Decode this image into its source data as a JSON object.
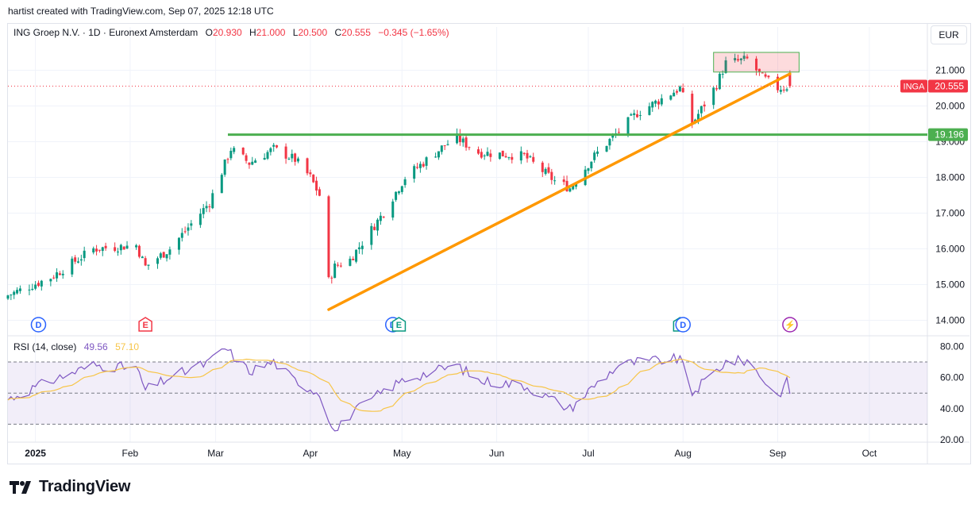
{
  "header": {
    "credit": "hartist created with TradingView.com, Sep 07, 2025 12:18 UTC"
  },
  "legend": {
    "symbol": "ING Groep N.V. · 1D · Euronext Amsterdam",
    "open_label": "O",
    "open": "20.930",
    "high_label": "H",
    "high": "21.000",
    "low_label": "L",
    "low": "20.500",
    "close_label": "C",
    "close": "20.555",
    "change": "−0.345 (−1.65%)"
  },
  "currency": "EUR",
  "brand": "TradingView",
  "price_tag": {
    "ticker": "INGA",
    "value": "20.555"
  },
  "level_tag": "19.196",
  "rsi": {
    "label": "RSI (14, close)",
    "value": "49.56",
    "ma": "57.10"
  },
  "colors": {
    "up": "#089981",
    "down": "#f23645",
    "support": "#4caf50",
    "trend": "#ff9800",
    "rsi": "#7e57c2",
    "rsi_ma": "#f7c548",
    "event_blue": "#2962ff",
    "event_red": "#f23645",
    "event_green": "#089981",
    "event_purple": "#9c27b0"
  },
  "chart_data": {
    "type": "candlestick",
    "title": "ING Groep N.V. · 1D · Euronext Amsterdam",
    "xlabel": "",
    "ylabel": "EUR",
    "x_tick_labels": [
      "2025",
      "Feb",
      "Mar",
      "Apr",
      "May",
      "Jun",
      "Jul",
      "Aug",
      "Sep",
      "Oct"
    ],
    "y_tick_labels": [
      "14.000",
      "15.000",
      "16.000",
      "17.000",
      "18.000",
      "19.000",
      "20.000",
      "21.000"
    ],
    "ylim": [
      13.8,
      22.0
    ],
    "anchors": [
      [
        "2024-12-23",
        14.7
      ],
      [
        "2025-01-06",
        15.2
      ],
      [
        "2025-01-20",
        16.0
      ],
      [
        "2025-02-03",
        16.1
      ],
      [
        "2025-02-06",
        15.5
      ],
      [
        "2025-02-14",
        16.0
      ],
      [
        "2025-02-27",
        17.3
      ],
      [
        "2025-03-06",
        18.8
      ],
      [
        "2025-03-12",
        18.4
      ],
      [
        "2025-03-20",
        18.8
      ],
      [
        "2025-03-27",
        18.5
      ],
      [
        "2025-04-01",
        18.0
      ],
      [
        "2025-04-04",
        17.5
      ],
      [
        "2025-04-07",
        15.1
      ],
      [
        "2025-04-09",
        15.5
      ],
      [
        "2025-04-14",
        15.7
      ],
      [
        "2025-04-24",
        16.9
      ],
      [
        "2025-05-02",
        18.0
      ],
      [
        "2025-05-15",
        18.9
      ],
      [
        "2025-05-19",
        19.1
      ],
      [
        "2025-05-26",
        18.7
      ],
      [
        "2025-06-10",
        18.6
      ],
      [
        "2025-06-20",
        17.9
      ],
      [
        "2025-06-25",
        17.7
      ],
      [
        "2025-07-03",
        18.6
      ],
      [
        "2025-07-11",
        19.3
      ],
      [
        "2025-07-17",
        19.8
      ],
      [
        "2025-07-31",
        20.5
      ],
      [
        "2025-08-04",
        19.5
      ],
      [
        "2025-08-12",
        20.6
      ],
      [
        "2025-08-15",
        21.2
      ],
      [
        "2025-08-22",
        21.3
      ],
      [
        "2025-08-27",
        20.8
      ],
      [
        "2025-09-01",
        20.5
      ],
      [
        "2025-09-05",
        20.555
      ]
    ],
    "last": {
      "open": 20.93,
      "high": 21.0,
      "low": 20.5,
      "close": 20.555
    },
    "support_level": 19.196,
    "trendline": [
      [
        "2025-04-07",
        14.3
      ],
      [
        "2025-09-05",
        20.9
      ]
    ],
    "rectangle": {
      "from": "2025-08-11",
      "to": "2025-09-08",
      "top": 21.5,
      "bottom": 20.95
    },
    "events": [
      {
        "date": "2025-01-02",
        "letter": "D",
        "kind": "blue"
      },
      {
        "date": "2025-02-06",
        "letter": "E",
        "kind": "red"
      },
      {
        "date": "2025-04-28",
        "letter": "D",
        "kind": "blue"
      },
      {
        "date": "2025-04-30",
        "letter": "E",
        "kind": "green"
      },
      {
        "date": "2025-07-31",
        "letter": "E",
        "kind": "green"
      },
      {
        "date": "2025-08-01",
        "letter": "D",
        "kind": "blue"
      },
      {
        "date": "2025-09-05",
        "letter": "⚡",
        "kind": "purple"
      }
    ],
    "rsi_panel": {
      "y_tick_labels": [
        "20.00",
        "40.00",
        "60.00",
        "80.00"
      ],
      "ylim": [
        18,
        84
      ],
      "upper": 70,
      "middle": 50,
      "lower": 30,
      "rsi_anchors": [
        [
          "2024-12-23",
          46
        ],
        [
          "2025-01-06",
          58
        ],
        [
          "2025-01-20",
          68
        ],
        [
          "2025-02-03",
          66
        ],
        [
          "2025-02-06",
          52
        ],
        [
          "2025-02-14",
          60
        ],
        [
          "2025-02-27",
          70
        ],
        [
          "2025-03-04",
          79
        ],
        [
          "2025-03-12",
          64
        ],
        [
          "2025-03-20",
          70
        ],
        [
          "2025-03-27",
          58
        ],
        [
          "2025-04-04",
          50
        ],
        [
          "2025-04-09",
          25
        ],
        [
          "2025-04-14",
          36
        ],
        [
          "2025-04-24",
          50
        ],
        [
          "2025-05-02",
          59
        ],
        [
          "2025-05-19",
          68
        ],
        [
          "2025-05-26",
          58
        ],
        [
          "2025-06-10",
          55
        ],
        [
          "2025-06-25",
          40
        ],
        [
          "2025-07-03",
          55
        ],
        [
          "2025-07-11",
          68
        ],
        [
          "2025-07-17",
          70
        ],
        [
          "2025-07-31",
          72
        ],
        [
          "2025-08-04",
          50
        ],
        [
          "2025-08-15",
          70
        ],
        [
          "2025-08-22",
          71
        ],
        [
          "2025-09-01",
          48
        ],
        [
          "2025-09-04",
          57
        ],
        [
          "2025-09-05",
          49.56
        ]
      ],
      "ma_value": 57.1
    }
  }
}
